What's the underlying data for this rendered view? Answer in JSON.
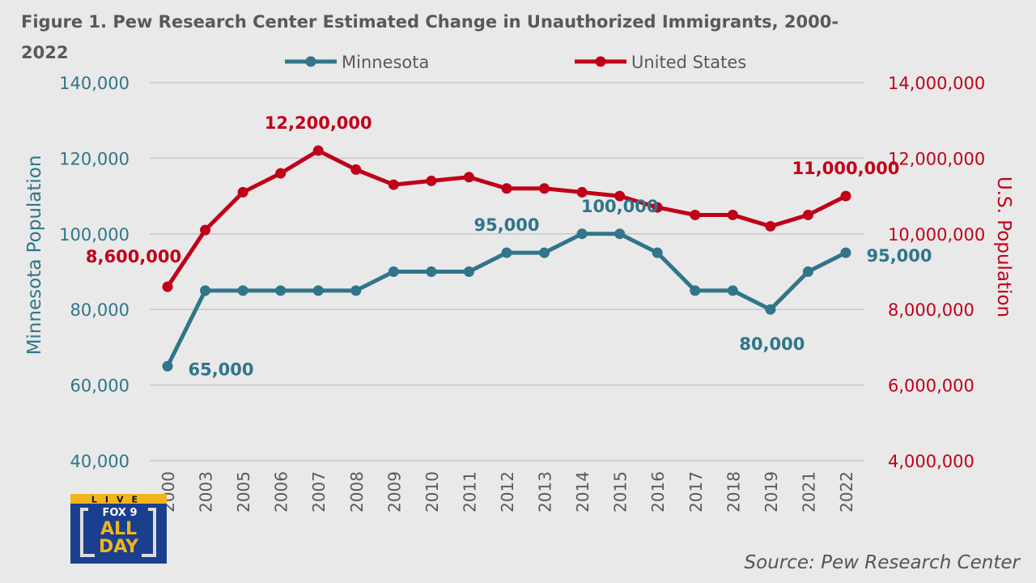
{
  "chart_data": {
    "type": "line",
    "title": "Figure 1. Pew Research Center Estimated Change in Unauthorized Immigrants, 2000-2022",
    "categories": [
      "2000",
      "2003",
      "2005",
      "2006",
      "2007",
      "2008",
      "2009",
      "2010",
      "2011",
      "2012",
      "2013",
      "2014",
      "2015",
      "2016",
      "2017",
      "2018",
      "2019",
      "2021",
      "2022"
    ],
    "series": [
      {
        "name": "Minnesota",
        "axis": "left",
        "color": "#31758a",
        "values": [
          65000,
          85000,
          85000,
          85000,
          85000,
          85000,
          90000,
          90000,
          90000,
          95000,
          95000,
          100000,
          100000,
          95000,
          85000,
          85000,
          80000,
          90000,
          95000
        ]
      },
      {
        "name": "United States",
        "axis": "right",
        "color": "#c00018",
        "values": [
          8600000,
          10100000,
          11100000,
          11600000,
          12200000,
          11700000,
          11300000,
          11400000,
          11500000,
          11200000,
          11200000,
          11100000,
          11000000,
          10700000,
          10500000,
          10500000,
          10200000,
          10500000,
          11000000
        ]
      }
    ],
    "left_axis": {
      "label": "Minnesota Population",
      "range": [
        40000,
        140000
      ],
      "ticks": [
        "40,000",
        "60,000",
        "80,000",
        "100,000",
        "120,000",
        "140,000"
      ],
      "color": "#31758a"
    },
    "right_axis": {
      "label": "U.S. Population",
      "range": [
        4000000,
        14000000
      ],
      "ticks": [
        "4,000,000",
        "6,000,000",
        "8,000,000",
        "10,000,000",
        "12,000,000",
        "14,000,000"
      ],
      "color": "#c00018"
    },
    "data_labels": [
      {
        "series": 1,
        "index": 0,
        "text": "8,600,000",
        "placement": "left-above"
      },
      {
        "series": 1,
        "index": 4,
        "text": "12,200,000",
        "placement": "above"
      },
      {
        "series": 1,
        "index": 18,
        "text": "11,000,000",
        "placement": "above"
      },
      {
        "series": 0,
        "index": 0,
        "text": "65,000",
        "placement": "below-right"
      },
      {
        "series": 0,
        "index": 9,
        "text": "95,000",
        "placement": "above"
      },
      {
        "series": 0,
        "index": 12,
        "text": "100,000",
        "placement": "above"
      },
      {
        "series": 0,
        "index": 18,
        "text": "95,000",
        "placement": "right"
      },
      {
        "series": 0,
        "index": 16,
        "text": "80,000",
        "placement": "below"
      }
    ],
    "legend_position": "top",
    "grid": true
  },
  "source": "Source: Pew Research Center",
  "logo": {
    "top": "LIVE",
    "brand": "FOX 9",
    "line1": "ALL",
    "line2": "DAY"
  }
}
